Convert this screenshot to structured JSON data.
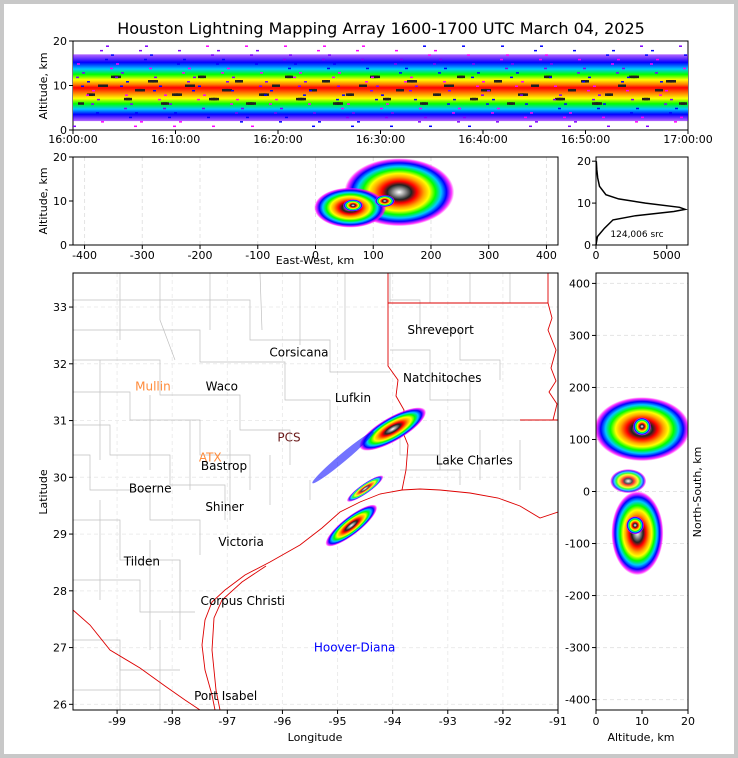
{
  "title": "Houston Lightning Mapping Array 1600-1700 UTC March 04, 2025",
  "time_height": {
    "ylabel": "Altitude, km",
    "ylim": [
      0,
      20
    ],
    "yticks": [
      "0",
      "10",
      "20"
    ],
    "xticks": [
      "16:00:00",
      "16:10:00",
      "16:20:00",
      "16:30:00",
      "16:40:00",
      "16:50:00",
      "17:00:00"
    ]
  },
  "ew_height": {
    "ylabel": "Altitude, km",
    "xlabel": "East-West, km",
    "xlim": [
      -420,
      420
    ],
    "ylim": [
      0,
      20
    ],
    "xticks": [
      "-400",
      "-300",
      "-200",
      "-100",
      "0",
      "100",
      "200",
      "300",
      "400"
    ],
    "yticks": [
      "0",
      "10",
      "20"
    ]
  },
  "histogram": {
    "xticks": [
      "0",
      "5000"
    ],
    "yticks": [
      "0",
      "10",
      "20"
    ],
    "annotation": "124,006 src",
    "xlim": [
      0,
      6500
    ],
    "ylim": [
      0,
      21
    ],
    "peak_altitude_km": 8.5,
    "peak_count": 6300
  },
  "map": {
    "xlabel": "Longitude",
    "ylabel": "Latitude",
    "xlim": [
      -99.8,
      -91.0
    ],
    "ylim": [
      25.9,
      33.6
    ],
    "xticks": [
      "-99",
      "-98",
      "-97",
      "-96",
      "-95",
      "-94",
      "-93",
      "-92",
      "-91"
    ],
    "yticks": [
      "26",
      "27",
      "28",
      "29",
      "30",
      "31",
      "32",
      "33"
    ],
    "cities": [
      {
        "name": "Shreveport",
        "lon": -93.13,
        "lat": 32.6,
        "color": "#000000"
      },
      {
        "name": "Corsicana",
        "lon": -95.7,
        "lat": 32.2,
        "color": "#000000"
      },
      {
        "name": "Mullin",
        "lon": -98.35,
        "lat": 31.6,
        "color": "#ff8c3c"
      },
      {
        "name": "Waco",
        "lon": -97.1,
        "lat": 31.6,
        "color": "#000000"
      },
      {
        "name": "Natchitoches",
        "lon": -93.1,
        "lat": 31.75,
        "color": "#000000"
      },
      {
        "name": "Lufkin",
        "lon": -94.72,
        "lat": 31.4,
        "color": "#000000"
      },
      {
        "name": "PCS",
        "lon": -95.88,
        "lat": 30.7,
        "color": "#6b1a1a"
      },
      {
        "name": "ATX",
        "lon": -97.31,
        "lat": 30.35,
        "color": "#ff8c3c"
      },
      {
        "name": "Bastrop",
        "lon": -97.06,
        "lat": 30.2,
        "color": "#000000"
      },
      {
        "name": "Lake Charles",
        "lon": -92.52,
        "lat": 30.3,
        "color": "#000000"
      },
      {
        "name": "Boerne",
        "lon": -98.4,
        "lat": 29.8,
        "color": "#000000"
      },
      {
        "name": "Shiner",
        "lon": -97.05,
        "lat": 29.48,
        "color": "#000000"
      },
      {
        "name": "Victoria",
        "lon": -96.75,
        "lat": 28.86,
        "color": "#000000"
      },
      {
        "name": "Tilden",
        "lon": -98.55,
        "lat": 28.52,
        "color": "#000000"
      },
      {
        "name": "Corpus Christi",
        "lon": -96.72,
        "lat": 27.82,
        "color": "#000000"
      },
      {
        "name": "Hoover-Diana",
        "lon": -94.69,
        "lat": 27.0,
        "color": "#0000ff"
      },
      {
        "name": "Port Isabel",
        "lon": -97.03,
        "lat": 26.15,
        "color": "#000000"
      }
    ],
    "cells": [
      {
        "lon": -94.0,
        "lat": 30.85
      },
      {
        "lon": -94.75,
        "lat": 29.15
      },
      {
        "lon": -94.5,
        "lat": 29.8
      }
    ]
  },
  "ns_height": {
    "xlabel": "Altitude, km",
    "ylabel": "North-South, km",
    "xlim": [
      0,
      20
    ],
    "ylim": [
      -420,
      420
    ],
    "xticks": [
      "0",
      "10",
      "20"
    ],
    "yticks": [
      "-400",
      "-300",
      "-200",
      "-100",
      "0",
      "100",
      "200",
      "300",
      "400"
    ]
  },
  "chart_data": [
    {
      "type": "heatmap",
      "title": "Houston Lightning Mapping Array 1600-1700 UTC March 04, 2025",
      "panel": "time-altitude",
      "ylabel": "Altitude, km",
      "x_range": [
        "16:00:00",
        "17:00:00"
      ],
      "ylim": [
        0,
        20
      ],
      "core_altitude_km": 9.5,
      "altitude_band_km": [
        3,
        19
      ]
    },
    {
      "type": "heatmap",
      "panel": "east-west altitude",
      "xlabel": "East-West, km",
      "ylabel": "Altitude, km",
      "xlim": [
        -420,
        420
      ],
      "ylim": [
        0,
        20
      ],
      "core_positions_km": [
        [
          65,
          9
        ],
        [
          120,
          10
        ]
      ],
      "x_extent_km": [
        0,
        200
      ]
    },
    {
      "type": "line",
      "panel": "altitude histogram",
      "annotation": "124,006 src",
      "altitude_km": [
        0,
        2,
        4,
        6,
        7,
        8,
        8.5,
        9,
        10,
        11,
        12,
        14,
        16,
        18,
        20
      ],
      "source_count": [
        0,
        100,
        600,
        1200,
        2800,
        5500,
        6300,
        5900,
        3500,
        1600,
        700,
        250,
        120,
        60,
        20
      ]
    },
    {
      "type": "heatmap",
      "panel": "plan view",
      "xlabel": "Longitude",
      "ylabel": "Latitude",
      "xlim": [
        -99.8,
        -91.0
      ],
      "ylim": [
        25.9,
        33.6
      ],
      "core_positions_deg": [
        [
          -94.0,
          30.85
        ],
        [
          -94.75,
          29.15
        ]
      ]
    },
    {
      "type": "heatmap",
      "panel": "north-south altitude",
      "xlabel": "Altitude, km",
      "ylabel": "North-South, km",
      "xlim": [
        0,
        20
      ],
      "ylim": [
        -420,
        420
      ],
      "core_positions_km": [
        [
          10,
          125
        ],
        [
          8.5,
          -65
        ]
      ]
    }
  ]
}
